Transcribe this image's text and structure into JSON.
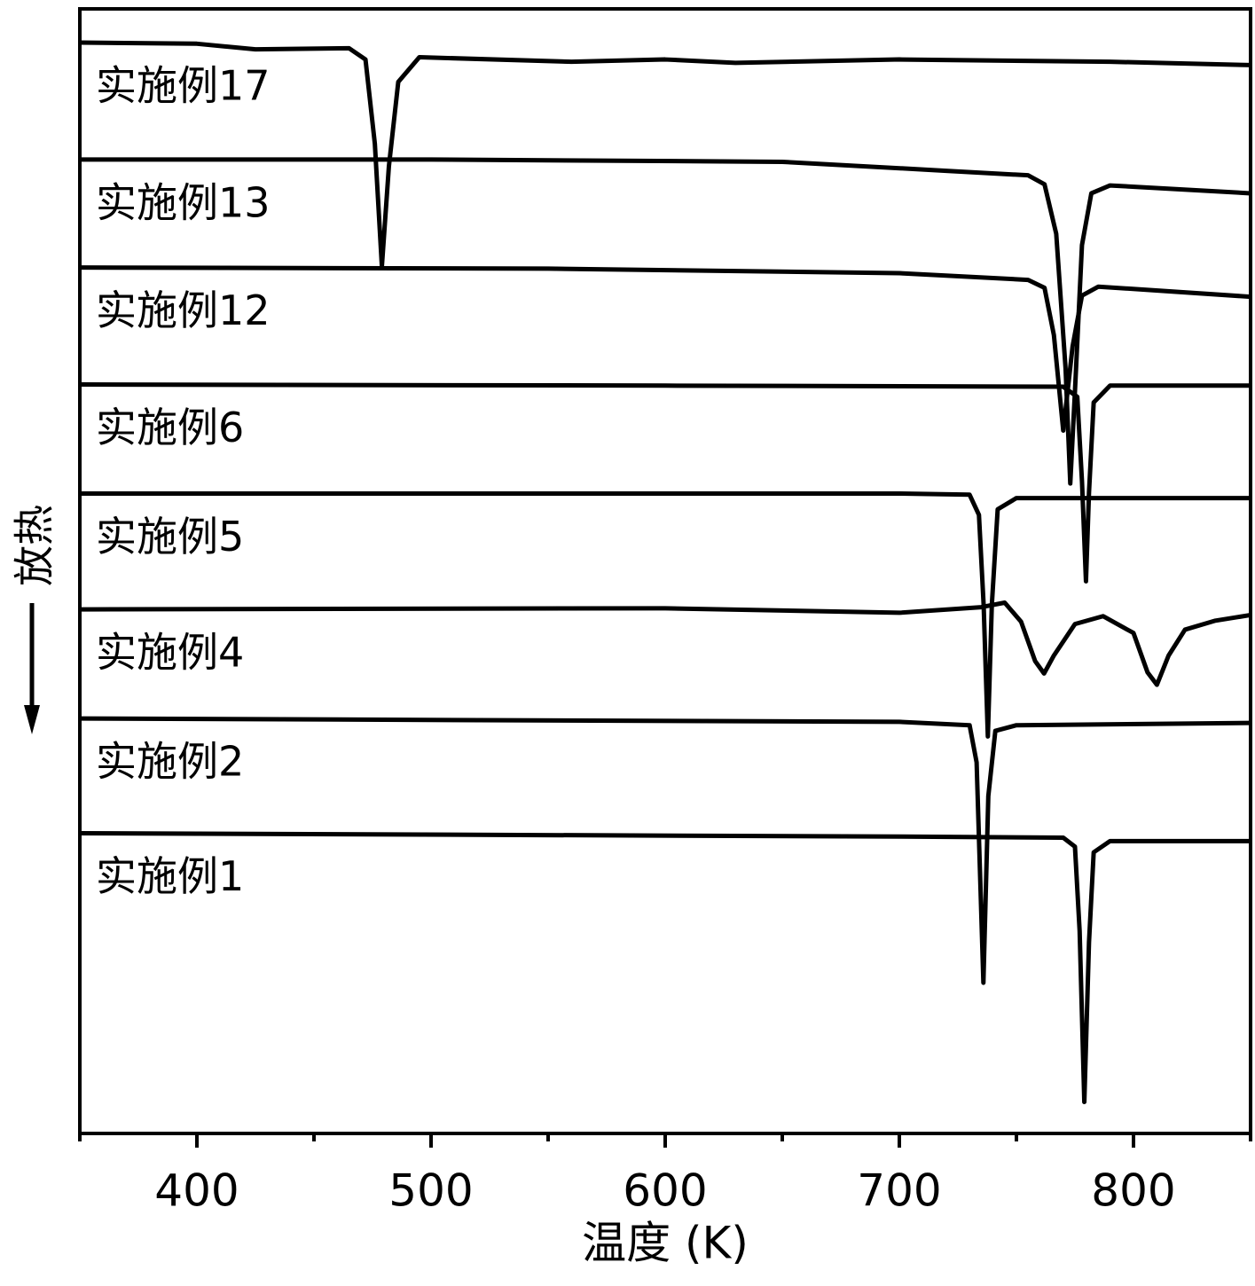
{
  "chart_data": {
    "type": "line",
    "xlabel": "温度 (K)",
    "ylabel": "放热",
    "xlim": [
      350,
      850
    ],
    "ylim": [
      0,
      100
    ],
    "xticks": [
      400,
      500,
      600,
      700,
      800
    ],
    "xminorticks": [
      350,
      450,
      550,
      650,
      750,
      850
    ],
    "color": "#000000",
    "series": [
      {
        "name": "实施例17",
        "color": "#000000",
        "x": [
          350,
          400,
          425,
          465,
          472,
          476,
          479,
          482,
          486,
          495,
          560,
          600,
          630,
          700,
          790,
          850
        ],
        "values": [
          97.0,
          96.9,
          96.4,
          96.5,
          95.5,
          88,
          77.1,
          86,
          93.5,
          95.7,
          95.3,
          95.5,
          95.2,
          95.5,
          95.3,
          95.0
        ]
      },
      {
        "name": "实施例13",
        "color": "#000000",
        "x": [
          350,
          500,
          650,
          720,
          755,
          762,
          767,
          771,
          773,
          775,
          778,
          782,
          790,
          850
        ],
        "values": [
          86.6,
          86.6,
          86.4,
          85.6,
          85.2,
          84.4,
          80,
          68,
          57.8,
          66,
          79,
          83.6,
          84.3,
          83.6
        ]
      },
      {
        "name": "实施例12",
        "color": "#000000",
        "x": [
          350,
          550,
          700,
          755,
          762,
          766,
          770,
          774,
          778,
          785,
          850
        ],
        "values": [
          77.0,
          76.9,
          76.5,
          75.9,
          75.2,
          71,
          62.5,
          70,
          74.5,
          75.3,
          74.4
        ]
      },
      {
        "name": "实施例6",
        "color": "#000000",
        "x": [
          350,
          600,
          770,
          776,
          778,
          779.7,
          781,
          783,
          790,
          850
        ],
        "values": [
          66.6,
          66.5,
          66.4,
          65.5,
          58,
          49.1,
          57,
          65,
          66.5,
          66.5
        ]
      },
      {
        "name": "实施例5",
        "color": "#000000",
        "x": [
          350,
          700,
          730,
          734,
          736,
          737.8,
          739.5,
          742,
          750,
          850
        ],
        "values": [
          56.9,
          56.9,
          56.8,
          55,
          47,
          35.3,
          47,
          55.5,
          56.5,
          56.5
        ]
      },
      {
        "name": "实施例4",
        "color": "#000000",
        "x": [
          350,
          600,
          700,
          735,
          745,
          752,
          758,
          761.8,
          766,
          775,
          787,
          800,
          806,
          810,
          815,
          822,
          835,
          850
        ],
        "values": [
          46.6,
          46.7,
          46.3,
          46.8,
          47.2,
          45.5,
          42,
          40.9,
          42.5,
          45.3,
          46.0,
          44.5,
          41,
          39.9,
          42.5,
          44.8,
          45.6,
          46.1
        ]
      },
      {
        "name": "实施例2",
        "color": "#000000",
        "x": [
          350,
          700,
          730,
          733,
          735.9,
          738,
          741,
          750,
          850
        ],
        "values": [
          36.9,
          36.6,
          36.3,
          33,
          13.4,
          30,
          35.8,
          36.3,
          36.5
        ]
      },
      {
        "name": "实施例1",
        "color": "#000000",
        "x": [
          350,
          700,
          770,
          775,
          777,
          779,
          781,
          783,
          790,
          850
        ],
        "values": [
          26.7,
          26.4,
          26.3,
          25.5,
          18,
          2.8,
          17,
          25,
          26.0,
          26.0
        ]
      }
    ]
  }
}
